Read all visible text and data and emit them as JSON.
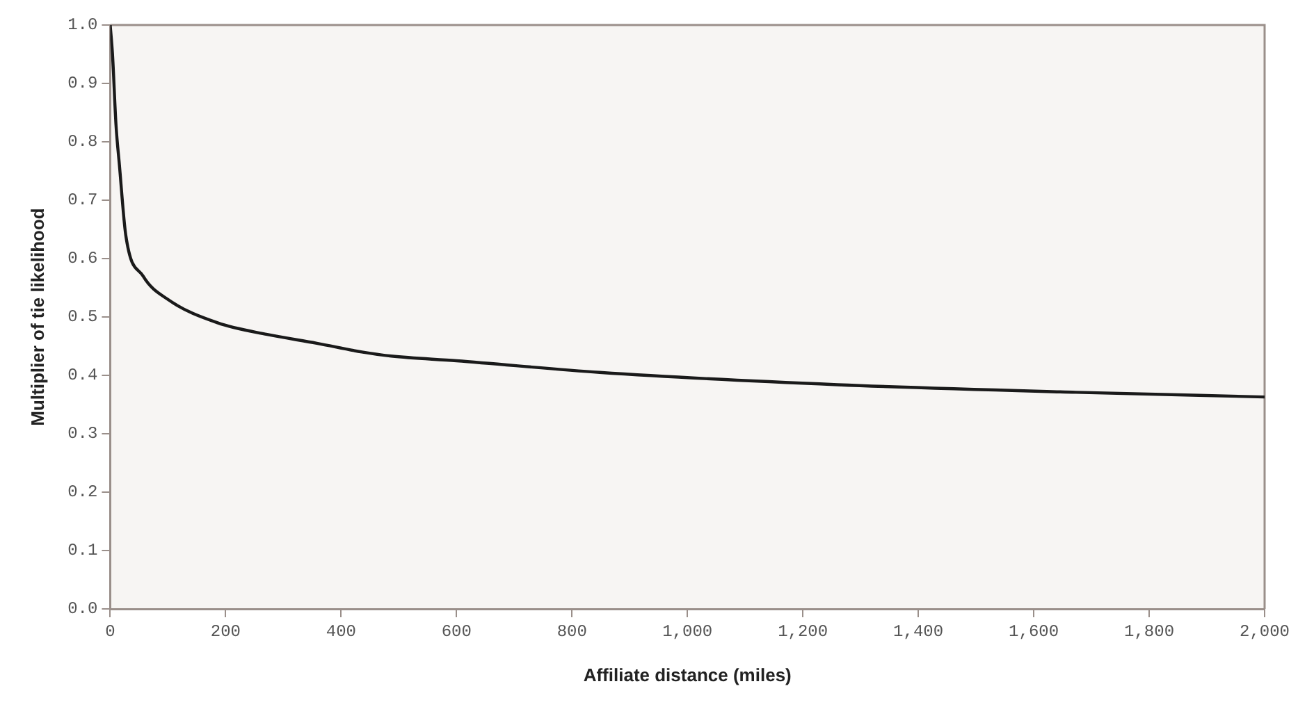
{
  "chart_data": {
    "type": "line",
    "xlabel": "Affiliate distance (miles)",
    "ylabel": "Multiplier of tie likelihood",
    "xlim": [
      0,
      2000
    ],
    "ylim": [
      0,
      1
    ],
    "xticks": [
      0,
      {
        "value": 200,
        "label": "200"
      },
      {
        "value": 400,
        "label": "400"
      },
      {
        "value": 600,
        "label": "600"
      },
      {
        "value": 800,
        "label": "800"
      },
      {
        "value": 1000,
        "label": "1,000"
      },
      {
        "value": 1200,
        "label": "1,200"
      },
      {
        "value": 1400,
        "label": "1,400"
      },
      {
        "value": 1600,
        "label": "1,600"
      },
      {
        "value": 1800,
        "label": "1,800"
      },
      {
        "value": 2000,
        "label": "2,000"
      }
    ],
    "yticks": [
      {
        "value": 0,
        "label": "0.0"
      },
      0.1,
      0.2,
      0.3,
      0.4,
      0.5,
      0.6,
      0.7,
      0.8,
      0.9,
      {
        "value": 1,
        "label": "1.0"
      }
    ],
    "grid": false,
    "legend": false,
    "marker": "none",
    "line_style": "solid",
    "series": [
      {
        "color": "#1a1a1a",
        "x": [
          0,
          4,
          10,
          16,
          27,
          57,
          100,
          186,
          272,
          358,
          436,
          487,
          600,
          848,
          1260,
          1673,
          2000
        ],
        "values": [
          1.0,
          0.95,
          0.83,
          0.76,
          0.64,
          0.57,
          0.53,
          0.49,
          0.47,
          0.455,
          0.44,
          0.433,
          0.425,
          0.405,
          0.384,
          0.371,
          0.363
        ]
      }
    ]
  }
}
